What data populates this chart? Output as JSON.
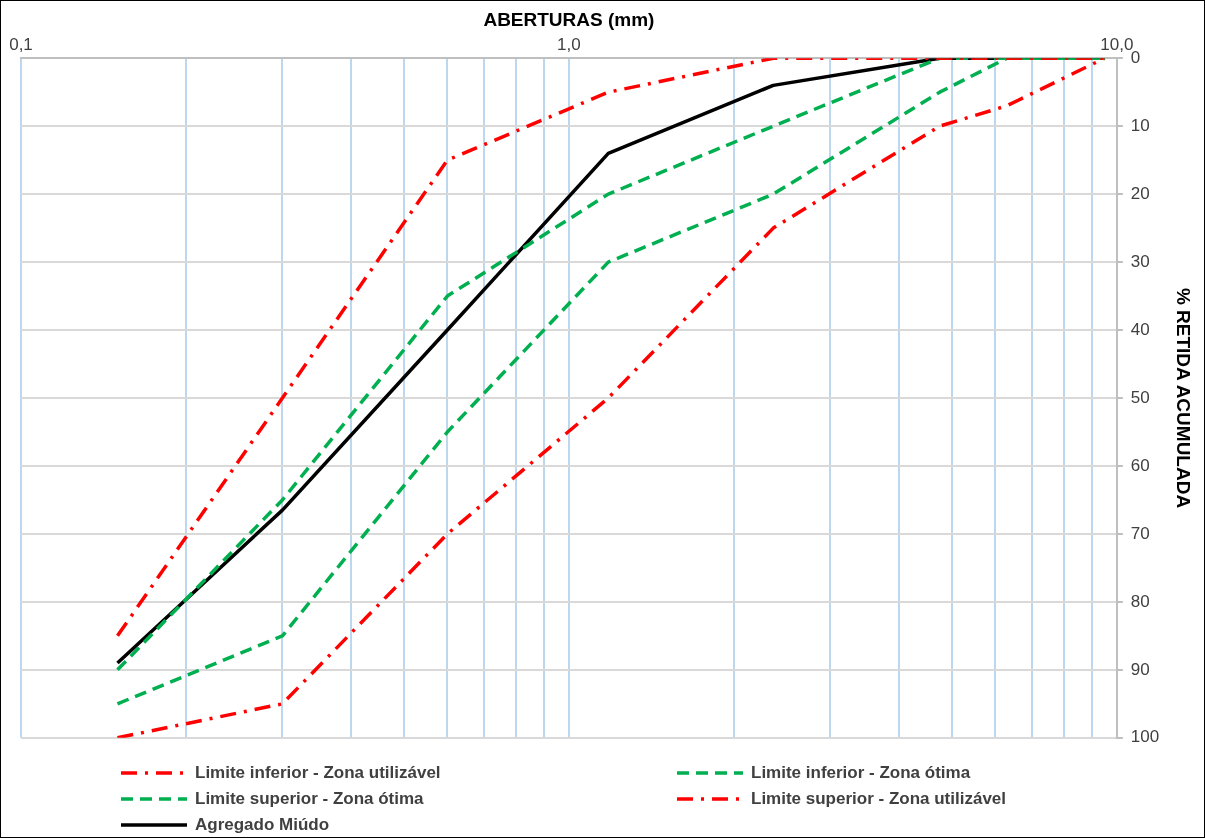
{
  "chart_data": {
    "type": "line",
    "xlabel": "ABERTURAS (mm)",
    "y2label": "% RETIDA ACUMULADA",
    "log": "x",
    "grid": true,
    "legend": "bottom",
    "marker": "none",
    "x": [
      0.15,
      0.3,
      0.6,
      1.18,
      2.36,
      4.75,
      6.3,
      9.5
    ],
    "xlim": [
      0.1,
      10
    ],
    "xticks": [
      {
        "value": 0.1,
        "label": "0,1"
      },
      {
        "value": 0.2,
        "label": null
      },
      {
        "value": 0.3,
        "label": null
      },
      {
        "value": 0.4,
        "label": null
      },
      {
        "value": 0.5,
        "label": null
      },
      {
        "value": 0.6,
        "label": null
      },
      {
        "value": 0.7,
        "label": null
      },
      {
        "value": 0.8,
        "label": null
      },
      {
        "value": 0.9,
        "label": null
      },
      {
        "value": 1,
        "label": "1,0"
      },
      {
        "value": 2,
        "label": null
      },
      {
        "value": 3,
        "label": null
      },
      {
        "value": 4,
        "label": null
      },
      {
        "value": 5,
        "label": null
      },
      {
        "value": 6,
        "label": null
      },
      {
        "value": 7,
        "label": null
      },
      {
        "value": 8,
        "label": null
      },
      {
        "value": 9,
        "label": null
      },
      {
        "value": 10,
        "label": "10,0"
      }
    ],
    "y2lim": [
      100,
      0
    ],
    "y2ticks": [
      0,
      10,
      20,
      30,
      40,
      50,
      60,
      70,
      80,
      90,
      100
    ],
    "series": [
      {
        "name": "Limite inferior - Zona utilizável",
        "color": "#ff0000",
        "line_style": "dashdot",
        "axis": "y2",
        "values": [
          85,
          50,
          15,
          5,
          0,
          0,
          0,
          0
        ]
      },
      {
        "name": "Limite inferior - Zona ótima",
        "color": "#00b050",
        "line_style": "dashed",
        "axis": "y2",
        "values": [
          90,
          65,
          35,
          20,
          10,
          0,
          0,
          0
        ]
      },
      {
        "name": "Limite superior - Zona ótima",
        "color": "#00b050",
        "line_style": "dashed",
        "axis": "y2",
        "values": [
          95,
          85,
          55,
          30,
          20,
          5,
          0,
          0
        ]
      },
      {
        "name": "Limite superior -  Zona utilizável",
        "color": "#ff0000",
        "line_style": "dashdot",
        "axis": "y2",
        "values": [
          100,
          95,
          70,
          50,
          25,
          10,
          7,
          0
        ]
      },
      {
        "name": "Agregado Miúdo",
        "color": "#000000",
        "line_style": "solid",
        "axis": "y2",
        "values": [
          89,
          66.5,
          40,
          14,
          4,
          0,
          0,
          0
        ]
      }
    ]
  }
}
